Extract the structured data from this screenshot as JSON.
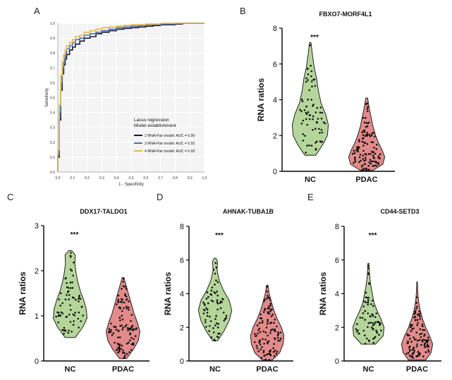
{
  "figure": {
    "panel_labels": [
      "A",
      "B",
      "C",
      "D",
      "E"
    ]
  },
  "chart_data": [
    {
      "panel": "A",
      "type": "line",
      "title": "",
      "xlabel": "1 - Specificity",
      "ylabel": "Sensitivity",
      "xlim": [
        0,
        1
      ],
      "ylim": [
        0,
        1
      ],
      "ticks": [
        "0.0",
        "0.1",
        "0.2",
        "0.3",
        "0.4",
        "0.5",
        "0.6",
        "0.7",
        "0.8",
        "0.9",
        "1.0"
      ],
      "legend_title": [
        "Lasso regression",
        "Model establishment"
      ],
      "legend_position": "bottom-right",
      "series": [
        {
          "name": "2 RNA-Pair model: AUC = 0.90",
          "color": "#1a1a2e",
          "x": [
            0.0,
            0.01,
            0.02,
            0.03,
            0.04,
            0.05,
            0.06,
            0.08,
            0.1,
            0.12,
            0.15,
            0.18,
            0.22,
            0.26,
            0.3,
            0.35,
            0.4,
            0.45,
            0.5,
            0.55,
            0.6,
            0.65,
            0.7,
            0.75,
            0.8,
            0.85,
            0.9,
            0.95,
            1.0
          ],
          "y": [
            0.0,
            0.1,
            0.35,
            0.55,
            0.66,
            0.72,
            0.76,
            0.79,
            0.82,
            0.84,
            0.86,
            0.88,
            0.9,
            0.91,
            0.93,
            0.94,
            0.95,
            0.96,
            0.965,
            0.97,
            0.975,
            0.98,
            0.985,
            0.99,
            0.99,
            0.995,
            1.0,
            1.0,
            1.0
          ]
        },
        {
          "name": "3 RNA-Pair model: AUC = 0.92",
          "color": "#4a6fa5",
          "x": [
            0.0,
            0.01,
            0.02,
            0.03,
            0.04,
            0.05,
            0.06,
            0.08,
            0.1,
            0.12,
            0.15,
            0.18,
            0.22,
            0.26,
            0.3,
            0.35,
            0.4,
            0.45,
            0.5,
            0.55,
            0.6,
            0.65,
            0.7,
            0.75,
            0.8,
            0.85,
            0.9,
            0.95,
            1.0
          ],
          "y": [
            0.0,
            0.12,
            0.4,
            0.6,
            0.7,
            0.76,
            0.8,
            0.83,
            0.85,
            0.87,
            0.89,
            0.9,
            0.92,
            0.93,
            0.94,
            0.95,
            0.96,
            0.97,
            0.975,
            0.98,
            0.985,
            0.99,
            0.99,
            0.995,
            0.995,
            1.0,
            1.0,
            1.0,
            1.0
          ]
        },
        {
          "name": "4 RNA-Pair model: AUC = 0.93",
          "color": "#e8b84a",
          "x": [
            0.0,
            0.01,
            0.02,
            0.03,
            0.04,
            0.05,
            0.06,
            0.08,
            0.1,
            0.12,
            0.15,
            0.18,
            0.22,
            0.26,
            0.3,
            0.35,
            0.4,
            0.45,
            0.5,
            0.55,
            0.6,
            0.65,
            0.7,
            0.75,
            0.8,
            0.85,
            0.9,
            0.95,
            1.0
          ],
          "y": [
            0.0,
            0.15,
            0.45,
            0.65,
            0.74,
            0.79,
            0.82,
            0.85,
            0.87,
            0.89,
            0.91,
            0.92,
            0.94,
            0.95,
            0.96,
            0.97,
            0.975,
            0.98,
            0.985,
            0.99,
            0.99,
            0.995,
            0.995,
            1.0,
            1.0,
            1.0,
            1.0,
            1.0,
            1.0
          ]
        }
      ]
    },
    {
      "panel": "B",
      "type": "violin",
      "title": "FBXO7-MORF4L1",
      "ylabel": "RNA ratios",
      "categories": [
        "NC",
        "PDAC"
      ],
      "ylim": [
        0,
        8
      ],
      "yticks": [
        0,
        2,
        4,
        6,
        8
      ],
      "significance": "***",
      "groups": [
        {
          "name": "NC",
          "color": "#b5d69a",
          "n": 70,
          "min": 0.9,
          "max": 7.2,
          "median": 2.6,
          "density": [
            [
              0.9,
              0.3
            ],
            [
              1.5,
              0.7
            ],
            [
              2.0,
              0.95
            ],
            [
              2.6,
              1.0
            ],
            [
              3.2,
              0.85
            ],
            [
              3.8,
              0.6
            ],
            [
              4.5,
              0.45
            ],
            [
              5.2,
              0.35
            ],
            [
              5.8,
              0.22
            ],
            [
              6.5,
              0.12
            ],
            [
              7.2,
              0.04
            ]
          ]
        },
        {
          "name": "PDAC",
          "color": "#e38a8a",
          "n": 110,
          "min": 0.05,
          "max": 4.1,
          "median": 1.1,
          "density": [
            [
              0.05,
              0.35
            ],
            [
              0.4,
              0.9
            ],
            [
              0.8,
              1.0
            ],
            [
              1.2,
              0.85
            ],
            [
              1.6,
              0.65
            ],
            [
              2.0,
              0.5
            ],
            [
              2.5,
              0.35
            ],
            [
              3.0,
              0.25
            ],
            [
              3.5,
              0.15
            ],
            [
              4.1,
              0.05
            ]
          ]
        }
      ]
    },
    {
      "panel": "C",
      "type": "violin",
      "title": "DDX17-TALDO1",
      "ylabel": "RNA ratios",
      "categories": [
        "NC",
        "PDAC"
      ],
      "ylim": [
        0,
        3
      ],
      "yticks": [
        0,
        1,
        2,
        3
      ],
      "significance": "***",
      "groups": [
        {
          "name": "NC",
          "color": "#b5d69a",
          "n": 70,
          "min": 0.52,
          "max": 2.45,
          "median": 1.2,
          "density": [
            [
              0.52,
              0.3
            ],
            [
              0.75,
              0.75
            ],
            [
              0.95,
              1.0
            ],
            [
              1.15,
              0.95
            ],
            [
              1.35,
              0.8
            ],
            [
              1.55,
              0.6
            ],
            [
              1.75,
              0.45
            ],
            [
              1.95,
              0.35
            ],
            [
              2.15,
              0.28
            ],
            [
              2.35,
              0.3
            ],
            [
              2.45,
              0.08
            ]
          ]
        },
        {
          "name": "PDAC",
          "color": "#e38a8a",
          "n": 110,
          "min": 0.05,
          "max": 1.85,
          "median": 0.7,
          "density": [
            [
              0.05,
              0.2
            ],
            [
              0.25,
              0.6
            ],
            [
              0.45,
              0.9
            ],
            [
              0.65,
              1.0
            ],
            [
              0.85,
              0.85
            ],
            [
              1.05,
              0.65
            ],
            [
              1.25,
              0.5
            ],
            [
              1.45,
              0.35
            ],
            [
              1.65,
              0.2
            ],
            [
              1.85,
              0.05
            ]
          ]
        }
      ]
    },
    {
      "panel": "D",
      "type": "violin",
      "title": "AHNAK-TUBA1B",
      "ylabel": "RNA ratios",
      "categories": [
        "NC",
        "PDAC"
      ],
      "ylim": [
        0,
        8
      ],
      "yticks": [
        0,
        2,
        4,
        6,
        8
      ],
      "significance": "***",
      "groups": [
        {
          "name": "NC",
          "color": "#b5d69a",
          "n": 70,
          "min": 1.2,
          "max": 6.1,
          "median": 3.0,
          "density": [
            [
              1.2,
              0.15
            ],
            [
              1.8,
              0.55
            ],
            [
              2.4,
              0.85
            ],
            [
              3.0,
              1.0
            ],
            [
              3.6,
              0.85
            ],
            [
              4.2,
              0.5
            ],
            [
              4.8,
              0.25
            ],
            [
              5.4,
              0.12
            ],
            [
              5.9,
              0.15
            ],
            [
              6.1,
              0.05
            ]
          ]
        },
        {
          "name": "PDAC",
          "color": "#e38a8a",
          "n": 110,
          "min": 0.05,
          "max": 4.5,
          "median": 1.5,
          "density": [
            [
              0.05,
              0.3
            ],
            [
              0.5,
              0.75
            ],
            [
              1.0,
              0.95
            ],
            [
              1.5,
              1.0
            ],
            [
              2.0,
              0.85
            ],
            [
              2.5,
              0.6
            ],
            [
              3.0,
              0.4
            ],
            [
              3.5,
              0.25
            ],
            [
              4.0,
              0.12
            ],
            [
              4.5,
              0.04
            ]
          ]
        }
      ]
    },
    {
      "panel": "E",
      "type": "violin",
      "title": "CD44-SETD3",
      "ylabel": "RNA ratios",
      "categories": [
        "NC",
        "PDAC"
      ],
      "ylim": [
        0,
        8
      ],
      "yticks": [
        0,
        2,
        4,
        6,
        8
      ],
      "significance": "***",
      "groups": [
        {
          "name": "NC",
          "color": "#b5d69a",
          "n": 70,
          "min": 1.0,
          "max": 5.8,
          "median": 2.0,
          "density": [
            [
              1.0,
              0.45
            ],
            [
              1.5,
              0.95
            ],
            [
              2.0,
              1.0
            ],
            [
              2.5,
              0.8
            ],
            [
              3.0,
              0.55
            ],
            [
              3.5,
              0.35
            ],
            [
              4.0,
              0.25
            ],
            [
              4.5,
              0.15
            ],
            [
              5.0,
              0.08
            ],
            [
              5.8,
              0.03
            ]
          ]
        },
        {
          "name": "PDAC",
          "color": "#e38a8a",
          "n": 110,
          "min": 0.05,
          "max": 4.7,
          "median": 1.1,
          "density": [
            [
              0.05,
              0.55
            ],
            [
              0.5,
              0.9
            ],
            [
              1.0,
              1.0
            ],
            [
              1.5,
              0.8
            ],
            [
              2.0,
              0.55
            ],
            [
              2.5,
              0.35
            ],
            [
              3.0,
              0.2
            ],
            [
              3.5,
              0.1
            ],
            [
              4.0,
              0.05
            ],
            [
              4.7,
              0.02
            ]
          ]
        }
      ]
    }
  ]
}
